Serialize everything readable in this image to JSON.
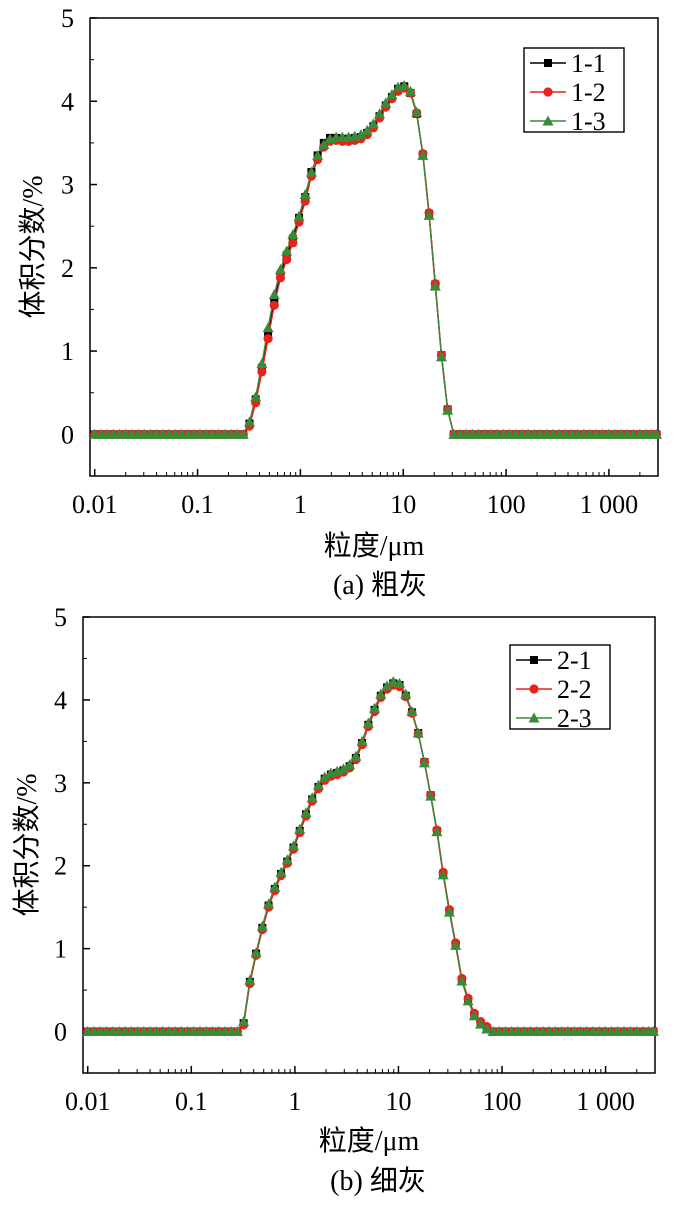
{
  "chart_data": [
    {
      "type": "line",
      "caption": "(a) 粗灰",
      "xlabel": "粒度/μm",
      "ylabel": "体积分数/%",
      "xscale": "log",
      "xlim": [
        0.009,
        3000
      ],
      "ylim": [
        -0.5,
        5
      ],
      "xticks": [
        0.01,
        0.1,
        1,
        10,
        100,
        1000
      ],
      "xtick_labels": [
        "0.01",
        "0.1",
        "1",
        "10",
        "100",
        "1 000"
      ],
      "yticks": [
        0,
        1,
        2,
        3,
        4,
        5
      ],
      "ytick_labels": [
        "0",
        "1",
        "2",
        "3",
        "4",
        "5"
      ],
      "legend_position": "top-right",
      "x": [
        0.01,
        0.0115,
        0.0132,
        0.0152,
        0.0174,
        0.02,
        0.023,
        0.0264,
        0.0303,
        0.0348,
        0.04,
        0.046,
        0.0528,
        0.0606,
        0.0696,
        0.08,
        0.0919,
        0.1056,
        0.1213,
        0.1393,
        0.16,
        0.1838,
        0.2111,
        0.2425,
        0.2786,
        0.32,
        0.3676,
        0.4222,
        0.485,
        0.5571,
        0.64,
        0.7352,
        0.8445,
        0.97,
        1.1143,
        1.28,
        1.4704,
        1.689,
        1.9401,
        2.2286,
        2.56,
        2.9407,
        3.3779,
        3.8802,
        4.4572,
        5.12,
        5.8813,
        6.7558,
        7.7604,
        8.9144,
        10.24,
        11.7627,
        13.5117,
        15.5208,
        17.8287,
        20.48,
        23.5253,
        27.0234,
        31.0416,
        35.6574,
        40.96,
        47.0506,
        54.0469,
        62.0831,
        71.3149,
        81.92,
        94.1012,
        108.0937,
        124.1663,
        142.6297,
        163.84,
        188.2024,
        216.1874,
        248.3326,
        285.2594,
        327.68,
        376.4048,
        432.3748,
        496.6652,
        570.5187,
        655.36,
        752.8096,
        864.7496,
        993.3304,
        1141.0375,
        1310.72,
        1505.6192,
        1729.4993,
        2000,
        2300,
        2600,
        2900
      ],
      "series": [
        {
          "name": "1-1",
          "color": "#000000",
          "marker": "square",
          "values": [
            0,
            0,
            0,
            0,
            0,
            0,
            0,
            0,
            0,
            0,
            0,
            0,
            0,
            0,
            0,
            0,
            0,
            0,
            0,
            0,
            0,
            0,
            0,
            0,
            0,
            0.13,
            0.42,
            0.8,
            1.2,
            1.6,
            1.92,
            2.15,
            2.35,
            2.6,
            2.85,
            3.15,
            3.35,
            3.5,
            3.56,
            3.56,
            3.55,
            3.55,
            3.56,
            3.57,
            3.62,
            3.7,
            3.82,
            3.95,
            4.05,
            4.15,
            4.18,
            4.1,
            3.85,
            3.36,
            2.65,
            1.8,
            0.95,
            0.3,
            0,
            0,
            0,
            0,
            0,
            0,
            0,
            0,
            0,
            0,
            0,
            0,
            0,
            0,
            0,
            0,
            0,
            0,
            0,
            0,
            0,
            0,
            0,
            0,
            0,
            0,
            0,
            0,
            0,
            0,
            0,
            0,
            0,
            0
          ]
        },
        {
          "name": "1-2",
          "color": "#e8221d",
          "marker": "circle",
          "values": [
            0,
            0,
            0,
            0,
            0,
            0,
            0,
            0,
            0,
            0,
            0,
            0,
            0,
            0,
            0,
            0,
            0,
            0,
            0,
            0,
            0,
            0,
            0,
            0,
            0,
            0.1,
            0.38,
            0.75,
            1.15,
            1.55,
            1.88,
            2.1,
            2.3,
            2.55,
            2.8,
            3.1,
            3.3,
            3.45,
            3.52,
            3.53,
            3.52,
            3.52,
            3.53,
            3.55,
            3.6,
            3.68,
            3.8,
            3.93,
            4.03,
            4.12,
            4.16,
            4.1,
            3.86,
            3.37,
            2.66,
            1.81,
            0.95,
            0.3,
            0,
            0,
            0,
            0,
            0,
            0,
            0,
            0,
            0,
            0,
            0,
            0,
            0,
            0,
            0,
            0,
            0,
            0,
            0,
            0,
            0,
            0,
            0,
            0,
            0,
            0,
            0,
            0,
            0,
            0,
            0,
            0,
            0,
            0
          ]
        },
        {
          "name": "1-3",
          "color": "#3a8a3a",
          "marker": "triangle",
          "values": [
            0,
            0,
            0,
            0,
            0,
            0,
            0,
            0,
            0,
            0,
            0,
            0,
            0,
            0,
            0,
            0,
            0,
            0,
            0,
            0,
            0,
            0,
            0,
            0,
            0,
            0.15,
            0.45,
            0.85,
            1.28,
            1.68,
            1.98,
            2.2,
            2.4,
            2.62,
            2.88,
            3.15,
            3.35,
            3.48,
            3.55,
            3.57,
            3.57,
            3.57,
            3.58,
            3.6,
            3.65,
            3.73,
            3.85,
            3.98,
            4.08,
            4.17,
            4.19,
            4.12,
            3.87,
            3.35,
            2.63,
            1.78,
            0.93,
            0.29,
            0,
            0,
            0,
            0,
            0,
            0,
            0,
            0,
            0,
            0,
            0,
            0,
            0,
            0,
            0,
            0,
            0,
            0,
            0,
            0,
            0,
            0,
            0,
            0,
            0,
            0,
            0,
            0,
            0,
            0,
            0,
            0,
            0,
            0
          ]
        }
      ]
    },
    {
      "type": "line",
      "caption": "(b) 细灰",
      "xlabel": "粒度/μm",
      "ylabel": "体积分数/%",
      "xscale": "log",
      "xlim": [
        0.009,
        3000
      ],
      "ylim": [
        -0.5,
        5
      ],
      "xticks": [
        0.01,
        0.1,
        1,
        10,
        100,
        1000
      ],
      "xtick_labels": [
        "0.01",
        "0.1",
        "1",
        "10",
        "100",
        "1 000"
      ],
      "yticks": [
        0,
        1,
        2,
        3,
        4,
        5
      ],
      "ytick_labels": [
        "0",
        "1",
        "2",
        "3",
        "4",
        "5"
      ],
      "legend_position": "top-right",
      "x": [
        0.01,
        0.0115,
        0.0132,
        0.0152,
        0.0174,
        0.02,
        0.023,
        0.0264,
        0.0303,
        0.0348,
        0.04,
        0.046,
        0.0528,
        0.0606,
        0.0696,
        0.08,
        0.0919,
        0.1056,
        0.1213,
        0.1393,
        0.16,
        0.1838,
        0.2111,
        0.2425,
        0.2786,
        0.32,
        0.3676,
        0.4222,
        0.485,
        0.5571,
        0.64,
        0.7352,
        0.8445,
        0.97,
        1.1143,
        1.28,
        1.4704,
        1.689,
        1.9401,
        2.2286,
        2.56,
        2.9407,
        3.3779,
        3.8802,
        4.4572,
        5.12,
        5.8813,
        6.7558,
        7.7604,
        8.9144,
        10.24,
        11.7627,
        13.5117,
        15.5208,
        17.8287,
        20.48,
        23.5253,
        27.0234,
        31.0416,
        35.6574,
        40.96,
        47.0506,
        54.0469,
        62.0831,
        71.3149,
        81.92,
        94.1012,
        108.0937,
        124.1663,
        142.6297,
        163.84,
        188.2024,
        216.1874,
        248.3326,
        285.2594,
        327.68,
        376.4048,
        432.3748,
        496.6652,
        570.5187,
        655.36,
        752.8096,
        864.7496,
        993.3304,
        1141.0375,
        1310.72,
        1505.6192,
        1729.4993,
        2000,
        2300,
        2600,
        2900
      ],
      "series": [
        {
          "name": "2-1",
          "color": "#000000",
          "marker": "square",
          "values": [
            0,
            0,
            0,
            0,
            0,
            0,
            0,
            0,
            0,
            0,
            0,
            0,
            0,
            0,
            0,
            0,
            0,
            0,
            0,
            0,
            0,
            0,
            0,
            0,
            0,
            0.1,
            0.6,
            0.94,
            1.25,
            1.52,
            1.72,
            1.9,
            2.05,
            2.22,
            2.42,
            2.62,
            2.8,
            2.95,
            3.05,
            3.1,
            3.12,
            3.15,
            3.2,
            3.3,
            3.48,
            3.7,
            3.88,
            4.05,
            4.15,
            4.2,
            4.18,
            4.05,
            3.85,
            3.6,
            3.25,
            2.85,
            2.42,
            1.9,
            1.45,
            1.05,
            0.62,
            0.38,
            0.2,
            0.1,
            0.04,
            0,
            0,
            0,
            0,
            0,
            0,
            0,
            0,
            0,
            0,
            0,
            0,
            0,
            0,
            0,
            0,
            0,
            0,
            0,
            0,
            0,
            0,
            0,
            0,
            0,
            0,
            0
          ]
        },
        {
          "name": "2-2",
          "color": "#e8221d",
          "marker": "circle",
          "values": [
            0,
            0,
            0,
            0,
            0,
            0,
            0,
            0,
            0,
            0,
            0,
            0,
            0,
            0,
            0,
            0,
            0,
            0,
            0,
            0,
            0,
            0,
            0,
            0,
            0,
            0.08,
            0.58,
            0.92,
            1.23,
            1.5,
            1.7,
            1.88,
            2.03,
            2.2,
            2.4,
            2.6,
            2.78,
            2.93,
            3.03,
            3.08,
            3.1,
            3.13,
            3.18,
            3.28,
            3.46,
            3.68,
            3.86,
            4.03,
            4.13,
            4.18,
            4.16,
            4.04,
            3.84,
            3.59,
            3.25,
            2.85,
            2.43,
            1.92,
            1.47,
            1.07,
            0.64,
            0.4,
            0.22,
            0.12,
            0.06,
            0,
            0,
            0,
            0,
            0,
            0,
            0,
            0,
            0,
            0,
            0,
            0,
            0,
            0,
            0,
            0,
            0,
            0,
            0,
            0,
            0,
            0,
            0,
            0,
            0,
            0,
            0
          ]
        },
        {
          "name": "2-3",
          "color": "#3a8a3a",
          "marker": "triangle",
          "values": [
            0,
            0,
            0,
            0,
            0,
            0,
            0,
            0,
            0,
            0,
            0,
            0,
            0,
            0,
            0,
            0,
            0,
            0,
            0,
            0,
            0,
            0,
            0,
            0,
            0,
            0.12,
            0.62,
            0.95,
            1.27,
            1.54,
            1.74,
            1.92,
            2.07,
            2.24,
            2.44,
            2.64,
            2.82,
            2.97,
            3.07,
            3.12,
            3.14,
            3.17,
            3.22,
            3.32,
            3.5,
            3.72,
            3.9,
            4.07,
            4.17,
            4.22,
            4.2,
            4.07,
            3.86,
            3.6,
            3.24,
            2.84,
            2.41,
            1.89,
            1.44,
            1.04,
            0.61,
            0.37,
            0.19,
            0.09,
            0.03,
            0,
            0,
            0,
            0,
            0,
            0,
            0,
            0,
            0,
            0,
            0,
            0,
            0,
            0,
            0,
            0,
            0,
            0,
            0,
            0,
            0,
            0,
            0,
            0,
            0,
            0,
            0
          ]
        }
      ]
    }
  ]
}
